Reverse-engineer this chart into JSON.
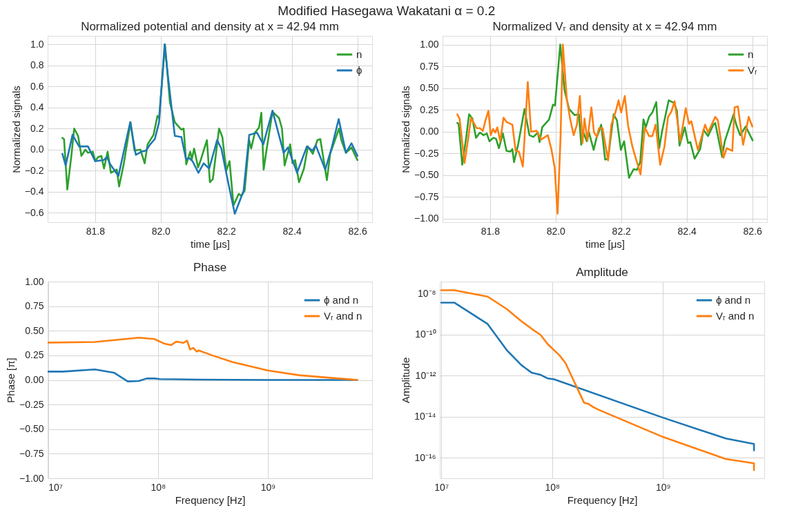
{
  "chart_data": [
    {
      "type": "line",
      "title": "Normalized potential and density at x = 42.94 mm",
      "xlabel": "time [μs]",
      "ylabel": "Normalized signals",
      "annotations": [
        "Modified Hasegawa Wakatani α = 0.2"
      ],
      "xlim": [
        81.655,
        82.645
      ],
      "xticks": [
        81.8,
        {
          "value": 82.0,
          "label": "82.0"
        },
        82.2,
        82.4,
        82.6
      ],
      "ylim": [
        -0.69,
        1.08
      ],
      "yticks": [
        {
          "value": -0.6,
          "label": "−0.6"
        },
        {
          "value": -0.4,
          "label": "−0.4"
        },
        {
          "value": -0.2,
          "label": "−0.2"
        },
        {
          "value": 0,
          "label": "0.0"
        },
        {
          "value": 0.2,
          "label": "0.2"
        },
        {
          "value": 0.4,
          "label": "0.4"
        },
        {
          "value": 0.6,
          "label": "0.6"
        },
        {
          "value": 0.8,
          "label": "0.8"
        },
        {
          "value": 1,
          "label": "1.0"
        }
      ],
      "grid": true,
      "legend": "top right",
      "line_style": "solid",
      "marker": "none",
      "series": [
        {
          "name": "n",
          "color": "#2ca02c",
          "x": [
            81.7,
            81.705,
            81.715,
            81.727,
            81.736,
            81.748,
            81.758,
            81.77,
            81.778,
            81.793,
            81.8,
            81.809,
            81.819,
            81.827,
            81.838,
            81.848,
            81.866,
            81.873,
            81.887,
            81.908,
            81.92,
            81.938,
            81.951,
            81.96,
            81.978,
            81.99,
            81.995,
            82.013,
            82.028,
            82.043,
            82.063,
            82.07,
            82.078,
            82.09,
            82.095,
            82.102,
            82.114,
            82.123,
            82.132,
            82.141,
            82.15,
            82.159,
            82.178,
            82.188,
            82.2,
            82.21,
            82.222,
            82.238,
            82.246,
            82.256,
            82.27,
            82.276,
            82.287,
            82.3,
            82.307,
            82.314,
            82.324,
            82.341,
            82.361,
            82.37,
            82.378,
            82.395,
            82.402,
            82.41,
            82.422,
            82.437,
            82.449,
            82.464,
            82.478,
            82.487,
            82.507,
            82.517,
            82.544,
            82.551,
            82.565,
            82.582,
            82.6
          ],
          "values": [
            0.11,
            0.1,
            -0.38,
            -0.07,
            0.2,
            0.13,
            -0.06,
            0.0,
            -0.03,
            -0.02,
            -0.11,
            -0.07,
            -0.06,
            -0.18,
            -0.02,
            -0.22,
            -0.19,
            -0.35,
            -0.14,
            0.26,
            -0.01,
            0.0,
            -0.13,
            0.05,
            0.14,
            0.32,
            0.3,
            1.0,
            0.45,
            0.26,
            0.19,
            0.2,
            -0.14,
            -0.02,
            -0.09,
            0.01,
            -0.17,
            -0.09,
            0.0,
            0.09,
            -0.31,
            -0.28,
            0.2,
            0.12,
            -0.2,
            -0.11,
            -0.53,
            -0.42,
            -0.44,
            -0.39,
            0.09,
            0.01,
            0.16,
            0.21,
            0.35,
            -0.19,
            0.02,
            0.36,
            0.3,
            0.2,
            -0.15,
            0.05,
            -0.13,
            -0.1,
            -0.31,
            -0.18,
            0.03,
            -0.04,
            0.09,
            0.1,
            -0.29,
            -0.04,
            0.2,
            0.09,
            -0.03,
            0.02,
            -0.1
          ]
        },
        {
          "name": "ϕ",
          "color": "#1f77b4",
          "x": [
            81.7,
            81.71,
            81.731,
            81.751,
            81.778,
            81.8,
            81.826,
            81.836,
            81.846,
            81.871,
            81.907,
            81.924,
            81.941,
            81.955,
            81.968,
            81.982,
            81.995,
            82.012,
            82.022,
            82.043,
            82.063,
            82.077,
            82.087,
            82.097,
            82.115,
            82.131,
            82.148,
            82.172,
            82.185,
            82.205,
            82.226,
            82.253,
            82.27,
            82.294,
            82.313,
            82.341,
            82.375,
            82.388,
            82.416,
            82.446,
            82.463,
            82.473,
            82.502,
            82.521,
            82.543,
            82.565,
            82.582,
            82.6
          ],
          "values": [
            -0.04,
            -0.15,
            0.14,
            0.03,
            0.03,
            -0.11,
            -0.1,
            -0.07,
            -0.14,
            -0.25,
            0.26,
            -0.05,
            -0.02,
            -0.01,
            0.05,
            0.1,
            0.26,
            1.0,
            0.7,
            0.13,
            0.12,
            -0.09,
            -0.08,
            -0.11,
            -0.22,
            -0.13,
            -0.18,
            0.09,
            0.01,
            -0.3,
            -0.61,
            -0.39,
            0.14,
            0.16,
            0.05,
            0.37,
            -0.03,
            0.02,
            -0.22,
            0.03,
            -0.01,
            0.04,
            -0.19,
            0.01,
            0.29,
            -0.03,
            0.06,
            -0.06
          ]
        }
      ]
    },
    {
      "type": "line",
      "title": "Normalized Vᵣ and density at x = 42.94 mm",
      "xlabel": "time [μs]",
      "ylabel": "Normalized signals",
      "xlim": [
        81.655,
        82.645
      ],
      "xticks": [
        81.8,
        {
          "value": 82.0,
          "label": "82.0"
        },
        82.2,
        82.4,
        82.6
      ],
      "ylim": [
        -1.04,
        1.1
      ],
      "yticks": [
        {
          "value": -1,
          "label": "−1.00"
        },
        {
          "value": -0.75,
          "label": "−0.75"
        },
        {
          "value": -0.5,
          "label": "−0.50"
        },
        {
          "value": -0.25,
          "label": "−0.25"
        },
        {
          "value": 0,
          "label": "0.00"
        },
        {
          "value": 0.25,
          "label": "0.25"
        },
        {
          "value": 0.5,
          "label": "0.50"
        },
        {
          "value": 0.75,
          "label": "0.75"
        },
        {
          "value": 1,
          "label": "1.00"
        }
      ],
      "grid": true,
      "legend": "top right",
      "line_style": "solid",
      "marker": "none",
      "series": [
        {
          "name": "n",
          "color": "#2ca02c",
          "x": [
            81.7,
            81.704,
            81.715,
            81.727,
            81.736,
            81.746,
            81.757,
            81.769,
            81.78,
            81.79,
            81.798,
            81.81,
            81.818,
            81.827,
            81.839,
            81.85,
            81.861,
            81.868,
            81.873,
            81.886,
            81.905,
            81.92,
            81.932,
            81.946,
            81.951,
            81.959,
            81.98,
            81.992,
            81.998,
            82.014,
            82.027,
            82.041,
            82.058,
            82.071,
            82.078,
            82.085,
            82.095,
            82.102,
            82.116,
            82.124,
            82.132,
            82.139,
            82.151,
            82.16,
            82.177,
            82.187,
            82.199,
            82.209,
            82.224,
            82.238,
            82.248,
            82.258,
            82.268,
            82.275,
            82.285,
            82.295,
            82.307,
            82.316,
            82.325,
            82.345,
            82.361,
            82.37,
            82.378,
            82.394,
            82.404,
            82.411,
            82.424,
            82.441,
            82.451,
            82.465,
            82.481,
            82.487,
            82.508,
            82.516,
            82.543,
            82.551,
            82.563,
            82.58,
            82.601
          ],
          "values": [
            0.1,
            0.09,
            -0.38,
            -0.07,
            0.2,
            0.15,
            -0.07,
            -0.01,
            -0.04,
            -0.02,
            -0.11,
            -0.07,
            -0.08,
            -0.19,
            -0.02,
            -0.22,
            -0.23,
            -0.2,
            -0.35,
            -0.14,
            0.26,
            -0.04,
            -0.06,
            -0.01,
            -0.12,
            0.05,
            0.14,
            0.31,
            0.3,
            1.0,
            0.48,
            0.26,
            0.19,
            0.2,
            -0.15,
            -0.01,
            -0.11,
            -0.01,
            -0.21,
            -0.08,
            0.0,
            0.08,
            -0.32,
            -0.31,
            0.2,
            0.13,
            -0.21,
            -0.11,
            -0.53,
            -0.43,
            -0.44,
            -0.35,
            0.14,
            0.05,
            0.17,
            0.22,
            0.34,
            -0.19,
            0.01,
            0.36,
            0.33,
            0.24,
            -0.16,
            0.05,
            -0.13,
            -0.12,
            -0.31,
            -0.2,
            0.02,
            -0.05,
            0.08,
            0.1,
            -0.29,
            -0.11,
            0.2,
            0.08,
            -0.04,
            0.06,
            -0.1
          ]
        },
        {
          "name": "Vᵣ",
          "color": "#ff7f0e",
          "x": [
            81.7,
            81.707,
            81.722,
            81.732,
            81.742,
            81.759,
            81.769,
            81.778,
            81.786,
            81.795,
            81.802,
            81.809,
            81.816,
            81.822,
            81.831,
            81.841,
            81.851,
            81.868,
            81.878,
            81.888,
            81.9,
            81.915,
            81.925,
            81.942,
            81.956,
            81.976,
            81.987,
            81.997,
            82.006,
            82.015,
            82.022,
            82.034,
            82.044,
            82.055,
            82.065,
            82.074,
            82.082,
            82.088,
            82.097,
            82.109,
            82.117,
            82.126,
            82.132,
            82.143,
            82.16,
            82.17,
            82.183,
            82.192,
            82.2,
            82.211,
            82.221,
            82.234,
            82.248,
            82.259,
            82.272,
            82.285,
            82.295,
            82.305,
            82.319,
            82.332,
            82.343,
            82.353,
            82.363,
            82.38,
            82.397,
            82.407,
            82.414,
            82.434,
            82.456,
            82.465,
            82.487,
            82.495,
            82.512,
            82.522,
            82.539,
            82.546,
            82.556,
            82.572,
            82.589,
            82.6
          ],
          "values": [
            0.2,
            0.15,
            -0.36,
            -0.11,
            0.16,
            0.04,
            0.04,
            0.01,
            0.13,
            0.24,
            -0.04,
            0.03,
            -0.01,
            0.05,
            -0.11,
            0.16,
            0.11,
            0.08,
            -0.22,
            -0.23,
            -0.4,
            0.57,
            0.0,
            0.01,
            -0.09,
            -0.04,
            -0.2,
            -0.41,
            -0.94,
            -0.06,
            1.0,
            0.38,
            0.15,
            -0.04,
            0.08,
            0.41,
            -0.13,
            0.15,
            -0.1,
            0.28,
            -0.01,
            -0.06,
            0.04,
            0.04,
            -0.33,
            0.08,
            0.23,
            0.36,
            0.22,
            0.41,
            0.07,
            -0.17,
            -0.35,
            -0.49,
            0.05,
            -0.05,
            -0.05,
            0.08,
            -0.38,
            -0.17,
            0.17,
            0.23,
            0.35,
            -0.11,
            0.27,
            0.09,
            0.12,
            -0.21,
            0.08,
            -0.01,
            0.17,
            0.13,
            -0.3,
            -0.19,
            -0.22,
            0.28,
            0.29,
            -0.15,
            0.17,
            0.06
          ]
        }
      ]
    },
    {
      "type": "line",
      "title": "Phase",
      "xlabel": "Frequency [Hz]",
      "ylabel": "Phase [π]",
      "log": "x",
      "xlim": [
        9900000.0,
        8900000000.0
      ],
      "xticks": [
        {
          "value": 10000000.0,
          "label": "10⁷"
        },
        {
          "value": 100000000.0,
          "label": "10⁸"
        },
        {
          "value": 1000000000.0,
          "label": "10⁹"
        }
      ],
      "ylim": [
        -1,
        1
      ],
      "yticks": [
        {
          "value": -1,
          "label": "−1.00"
        },
        {
          "value": -0.75,
          "label": "−0.75"
        },
        {
          "value": -0.5,
          "label": "−0.50"
        },
        {
          "value": -0.25,
          "label": "−0.25"
        },
        {
          "value": 0,
          "label": "0.00"
        },
        {
          "value": 0.25,
          "label": "0.25"
        },
        {
          "value": 0.5,
          "label": "0.50"
        },
        {
          "value": 0.75,
          "label": "0.75"
        },
        {
          "value": 1,
          "label": "1.00"
        }
      ],
      "grid": true,
      "legend": "top right",
      "line_style": "solid",
      "marker": "none",
      "series": [
        {
          "name": "ϕ and n",
          "color": "#1f77b4",
          "x": [
            10000000.0,
            13700000.0,
            26600000.0,
            39700000.0,
            53100000.0,
            67000000.0,
            78800000.0,
            92900000.0,
            104000000.0,
            235000000.0,
            1000000000.0,
            6510000000.0
          ],
          "values": [
            0.085,
            0.085,
            0.107,
            0.074,
            -0.015,
            -0.011,
            0.015,
            0.015,
            0.009,
            0.004,
            0.0,
            0.0
          ]
        },
        {
          "name": "Vᵣ and n",
          "color": "#ff7f0e",
          "x": [
            10000000.0,
            26600000.0,
            40100000.0,
            67000000.0,
            92900000.0,
            115000000.0,
            132000000.0,
            147000000.0,
            170000000.0,
            184000000.0,
            196000000.0,
            210000000.0,
            225000000.0,
            235000000.0,
            312000000.0,
            475000000.0,
            1000000000.0,
            1920000000.0,
            3860000000.0,
            6510000000.0
          ],
          "values": [
            0.38,
            0.386,
            0.405,
            0.43,
            0.416,
            0.368,
            0.355,
            0.39,
            0.377,
            0.4,
            0.31,
            0.325,
            0.288,
            0.3,
            0.25,
            0.183,
            0.096,
            0.048,
            0.02,
            0.0
          ]
        }
      ]
    },
    {
      "type": "line",
      "title": "Amplitude",
      "xlabel": "Frequency [Hz]",
      "ylabel": "Amplitude",
      "log": "xy",
      "xlim": [
        9700000.0,
        8200000000.0
      ],
      "xticks": [
        {
          "value": 10000000.0,
          "label": "10⁷"
        },
        {
          "value": 100000000.0,
          "label": "10⁸"
        },
        {
          "value": 1000000000.0,
          "label": "10⁹"
        }
      ],
      "ylim": [
        1e-17,
        3.75e-08
      ],
      "yticks": [
        {
          "value": 1e-16,
          "label": "10⁻¹⁶"
        },
        {
          "value": 1e-14,
          "label": "10⁻¹⁴"
        },
        {
          "value": 1e-12,
          "label": "10⁻¹²"
        },
        {
          "value": 1e-10,
          "label": "10⁻¹⁰"
        },
        {
          "value": 1e-08,
          "label": "10⁻⁸"
        }
      ],
      "grid": true,
      "legend": "top right",
      "line_style": "solid",
      "marker": "none",
      "series": [
        {
          "name": "ϕ and n",
          "color": "#1f77b4",
          "x": [
            10000000.0,
            13100000.0,
            26200000.0,
            39000000.0,
            52900000.0,
            65300000.0,
            78700000.0,
            91400000.0,
            104000000.0,
            1000000000.0,
            3680000000.0,
            6620000000.0,
            6620000000.0
          ],
          "values": [
            3.56e-09,
            3.56e-09,
            3.23e-10,
            1.73e-11,
            3.21e-12,
            1.39e-12,
            1.09e-12,
            7.25e-13,
            6.59e-13,
            8.95e-15,
            8.7e-16,
            4.68e-16,
            2.28e-16
          ]
        },
        {
          "name": "Vᵣ and n",
          "color": "#ff7f0e",
          "x": [
            10000000.0,
            13100000.0,
            26200000.0,
            39000000.0,
            52900000.0,
            65300000.0,
            78700000.0,
            91400000.0,
            117000000.0,
            132000000.0,
            194000000.0,
            211000000.0,
            234000000.0,
            260000000.0,
            1000000000.0,
            3680000000.0,
            6620000000.0,
            6620000000.0
          ],
          "values": [
            1.43e-08,
            1.43e-08,
            6.98e-09,
            1.73e-09,
            4.41e-10,
            1.9e-10,
            9.53e-11,
            3.36e-11,
            9.46e-12,
            4.07e-12,
            4.81e-14,
            4.27e-14,
            2.97e-14,
            2.23e-14,
            1.03e-15,
            8.7e-17,
            5.37e-17,
            2.5e-17
          ]
        }
      ]
    }
  ]
}
